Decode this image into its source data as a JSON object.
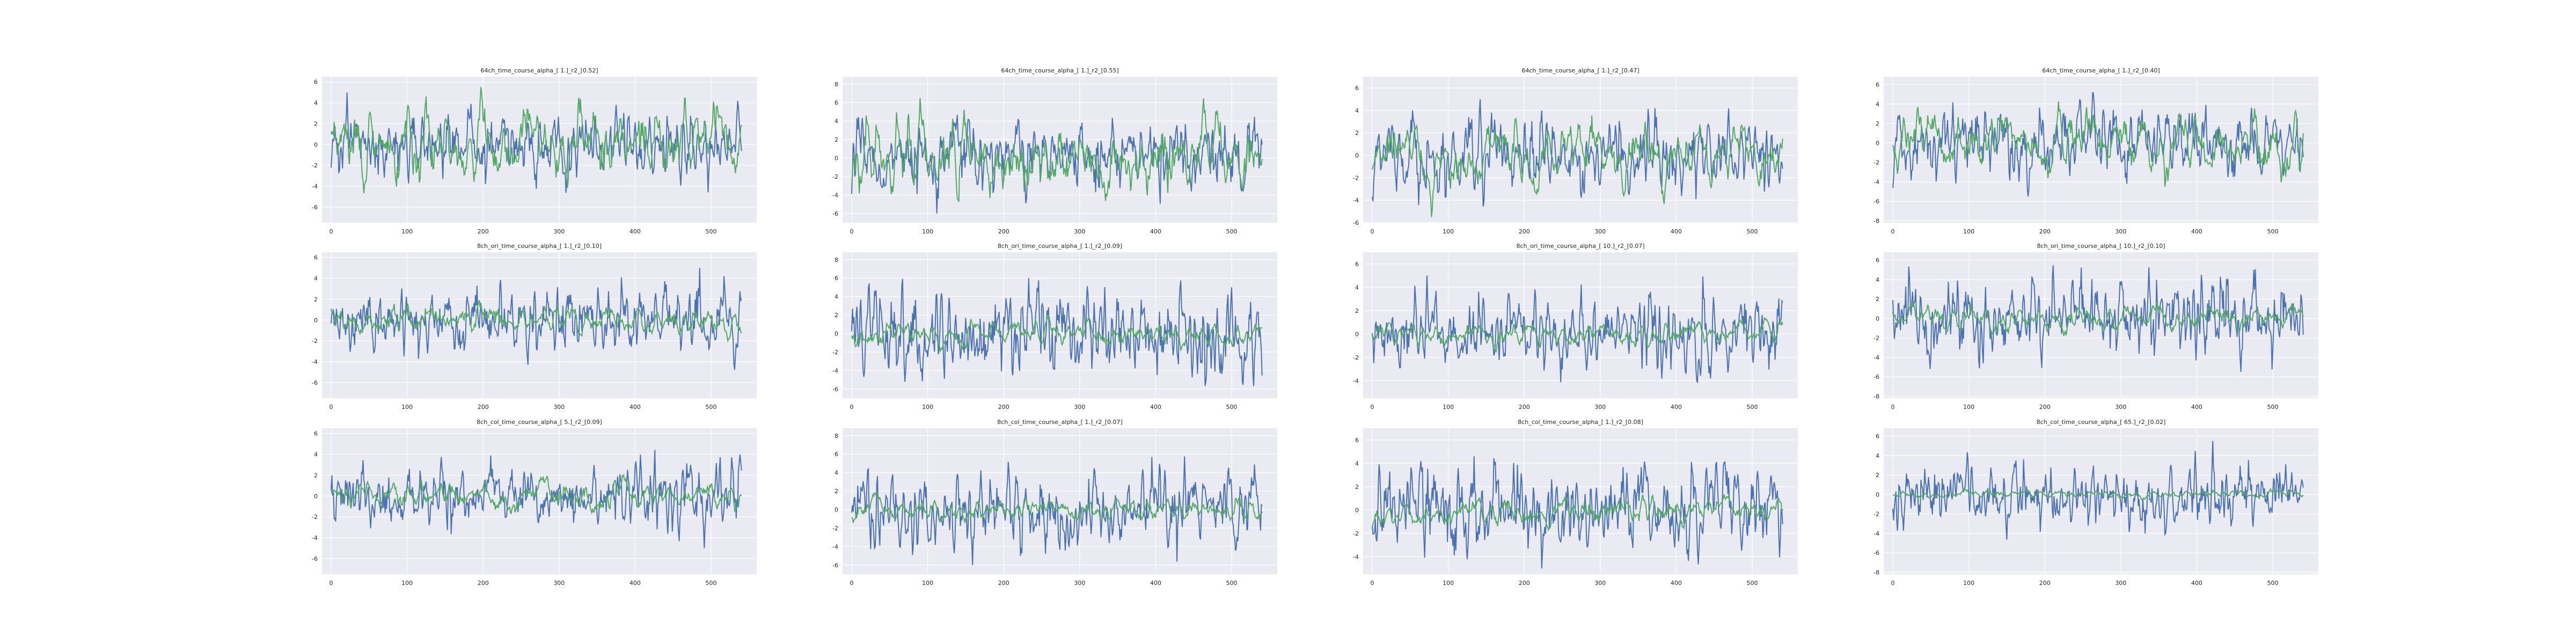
{
  "figure": {
    "background": "#ffffff",
    "axes_background": "#eaeaf2",
    "grid_color": "#ffffff",
    "series_colors": [
      "#4c72b0",
      "#55a868"
    ]
  },
  "chart_data": [
    {
      "type": "line",
      "title": "64ch_time_course_alpha_[ 1.]_r2_[0.52]",
      "xlim": [
        -12,
        560
      ],
      "ylim": [
        -7.5,
        6.5
      ],
      "xticks": [
        0,
        100,
        200,
        300,
        400,
        500
      ],
      "yticks": [
        -6,
        -4,
        -2,
        0,
        2,
        4,
        6
      ],
      "blue": {
        "seed": 101,
        "amp": 5.0
      },
      "green": {
        "seed": 201,
        "amp": 5.5
      },
      "series": [
        {
          "color": "#4c72b0"
        },
        {
          "color": "#55a868"
        }
      ]
    },
    {
      "type": "line",
      "title": "64ch_time_course_alpha_[ 1.]_r2_[0.55]",
      "xlim": [
        -12,
        560
      ],
      "ylim": [
        -7,
        8.8
      ],
      "xticks": [
        0,
        100,
        200,
        300,
        400,
        500
      ],
      "yticks": [
        -6,
        -4,
        -2,
        0,
        2,
        4,
        6,
        8
      ],
      "blue": {
        "seed": 102,
        "amp": 6.0
      },
      "green": {
        "seed": 202,
        "amp": 6.5
      },
      "series": [
        {
          "color": "#4c72b0"
        },
        {
          "color": "#55a868"
        }
      ]
    },
    {
      "type": "line",
      "title": "64ch_time_course_alpha_[ 1.]_r2_[0.47]",
      "xlim": [
        -12,
        560
      ],
      "ylim": [
        -6,
        7
      ],
      "xticks": [
        0,
        100,
        200,
        300,
        400,
        500
      ],
      "yticks": [
        -6,
        -4,
        -2,
        0,
        2,
        4,
        6
      ],
      "blue": {
        "seed": 103,
        "amp": 5.0
      },
      "green": {
        "seed": 203,
        "amp": 5.5
      },
      "series": [
        {
          "color": "#4c72b0"
        },
        {
          "color": "#55a868"
        }
      ]
    },
    {
      "type": "line",
      "title": "64ch_time_course_alpha_[ 1.]_r2_[0.40]",
      "xlim": [
        -12,
        560
      ],
      "ylim": [
        -8.2,
        6.8
      ],
      "xticks": [
        0,
        100,
        200,
        300,
        400,
        500
      ],
      "yticks": [
        -8,
        -6,
        -4,
        -2,
        0,
        2,
        4,
        6
      ],
      "blue": {
        "seed": 104,
        "amp": 5.5
      },
      "green": {
        "seed": 204,
        "amp": 4.5
      },
      "series": [
        {
          "color": "#4c72b0"
        },
        {
          "color": "#55a868"
        }
      ]
    },
    {
      "type": "line",
      "title": "8ch_ori_time_course_alpha_[ 1.]_r2_[0.10]",
      "xlim": [
        -12,
        560
      ],
      "ylim": [
        -7.5,
        6.5
      ],
      "xticks": [
        0,
        100,
        200,
        300,
        400,
        500
      ],
      "yticks": [
        -6,
        -4,
        -2,
        0,
        2,
        4,
        6
      ],
      "blue": {
        "seed": 105,
        "amp": 5.0
      },
      "green": {
        "seed": 205,
        "amp": 2.0
      },
      "series": [
        {
          "color": "#4c72b0"
        },
        {
          "color": "#55a868"
        }
      ]
    },
    {
      "type": "line",
      "title": "8ch_ori_time_course_alpha_[ 1.]_r2_[0.09]",
      "xlim": [
        -12,
        560
      ],
      "ylim": [
        -7,
        8.8
      ],
      "xticks": [
        0,
        100,
        200,
        300,
        400,
        500
      ],
      "yticks": [
        -6,
        -4,
        -2,
        0,
        2,
        4,
        6,
        8
      ],
      "blue": {
        "seed": 106,
        "amp": 6.0
      },
      "green": {
        "seed": 206,
        "amp": 2.0
      },
      "series": [
        {
          "color": "#4c72b0"
        },
        {
          "color": "#55a868"
        }
      ]
    },
    {
      "type": "line",
      "title": "8ch_ori_time_course_alpha_[ 10.]_r2_[0.07]",
      "xlim": [
        -12,
        560
      ],
      "ylim": [
        -5.5,
        7
      ],
      "xticks": [
        0,
        100,
        200,
        300,
        400,
        500
      ],
      "yticks": [
        -4,
        -2,
        0,
        2,
        4,
        6
      ],
      "blue": {
        "seed": 107,
        "amp": 5.0
      },
      "green": {
        "seed": 207,
        "amp": 1.5
      },
      "series": [
        {
          "color": "#4c72b0"
        },
        {
          "color": "#55a868"
        }
      ]
    },
    {
      "type": "line",
      "title": "8ch_ori_time_course_alpha_[ 10.]_r2_[0.10]",
      "xlim": [
        -12,
        560
      ],
      "ylim": [
        -8.2,
        6.8
      ],
      "xticks": [
        0,
        100,
        200,
        300,
        400,
        500
      ],
      "yticks": [
        -8,
        -6,
        -4,
        -2,
        0,
        2,
        4,
        6
      ],
      "blue": {
        "seed": 108,
        "amp": 5.5
      },
      "green": {
        "seed": 208,
        "amp": 1.8
      },
      "series": [
        {
          "color": "#4c72b0"
        },
        {
          "color": "#55a868"
        }
      ]
    },
    {
      "type": "line",
      "title": "8ch_col_time_course_alpha_[ 5.]_r2_[0.09]",
      "xlim": [
        -12,
        560
      ],
      "ylim": [
        -7.5,
        6.5
      ],
      "xticks": [
        0,
        100,
        200,
        300,
        400,
        500
      ],
      "yticks": [
        -6,
        -4,
        -2,
        0,
        2,
        4,
        6
      ],
      "blue": {
        "seed": 109,
        "amp": 5.0
      },
      "green": {
        "seed": 209,
        "amp": 2.0
      },
      "series": [
        {
          "color": "#4c72b0"
        },
        {
          "color": "#55a868"
        }
      ]
    },
    {
      "type": "line",
      "title": "8ch_col_time_course_alpha_[ 1.]_r2_[0.07]",
      "xlim": [
        -12,
        560
      ],
      "ylim": [
        -7,
        8.8
      ],
      "xticks": [
        0,
        100,
        200,
        300,
        400,
        500
      ],
      "yticks": [
        -6,
        -4,
        -2,
        0,
        2,
        4,
        6,
        8
      ],
      "blue": {
        "seed": 110,
        "amp": 6.0
      },
      "green": {
        "seed": 210,
        "amp": 1.8
      },
      "series": [
        {
          "color": "#4c72b0"
        },
        {
          "color": "#55a868"
        }
      ]
    },
    {
      "type": "line",
      "title": "8ch_col_time_course_alpha_[ 1.]_r2_[0.08]",
      "xlim": [
        -12,
        560
      ],
      "ylim": [
        -5.5,
        7
      ],
      "xticks": [
        0,
        100,
        200,
        300,
        400,
        500
      ],
      "yticks": [
        -4,
        -2,
        0,
        2,
        4,
        6
      ],
      "blue": {
        "seed": 111,
        "amp": 5.0
      },
      "green": {
        "seed": 211,
        "amp": 1.7
      },
      "series": [
        {
          "color": "#4c72b0"
        },
        {
          "color": "#55a868"
        }
      ]
    },
    {
      "type": "line",
      "title": "8ch_col_time_course_alpha_[ 65.]_r2_[0.02]",
      "xlim": [
        -12,
        560
      ],
      "ylim": [
        -8.2,
        6.8
      ],
      "xticks": [
        0,
        100,
        200,
        300,
        400,
        500
      ],
      "yticks": [
        -8,
        -6,
        -4,
        -2,
        0,
        2,
        4,
        6
      ],
      "blue": {
        "seed": 112,
        "amp": 5.5
      },
      "green": {
        "seed": 212,
        "amp": 0.6
      },
      "series": [
        {
          "color": "#4c72b0"
        },
        {
          "color": "#55a868"
        }
      ]
    }
  ]
}
